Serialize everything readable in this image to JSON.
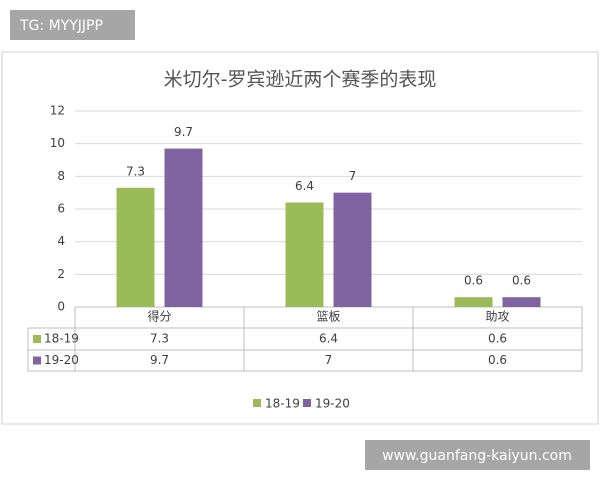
{
  "chart_data": {
    "type": "bar",
    "title": "米切尔-罗宾逊近两个赛季的表现",
    "categories": [
      "得分",
      "篮板",
      "助攻"
    ],
    "series": [
      {
        "name": "18-19",
        "color": "#9bbb59",
        "values": [
          7.3,
          6.4,
          0.6
        ]
      },
      {
        "name": "19-20",
        "color": "#8064a2",
        "values": [
          9.7,
          7,
          0.6
        ]
      }
    ],
    "ylim": [
      0,
      12
    ],
    "yticks": [
      0,
      2,
      4,
      6,
      8,
      10,
      12
    ],
    "grid": true,
    "legend": "bottom",
    "data_table": true
  },
  "overlay": {
    "top_left": "TG: MYYJJPP",
    "bottom_right": "www.guanfang-kaiyun.com"
  }
}
